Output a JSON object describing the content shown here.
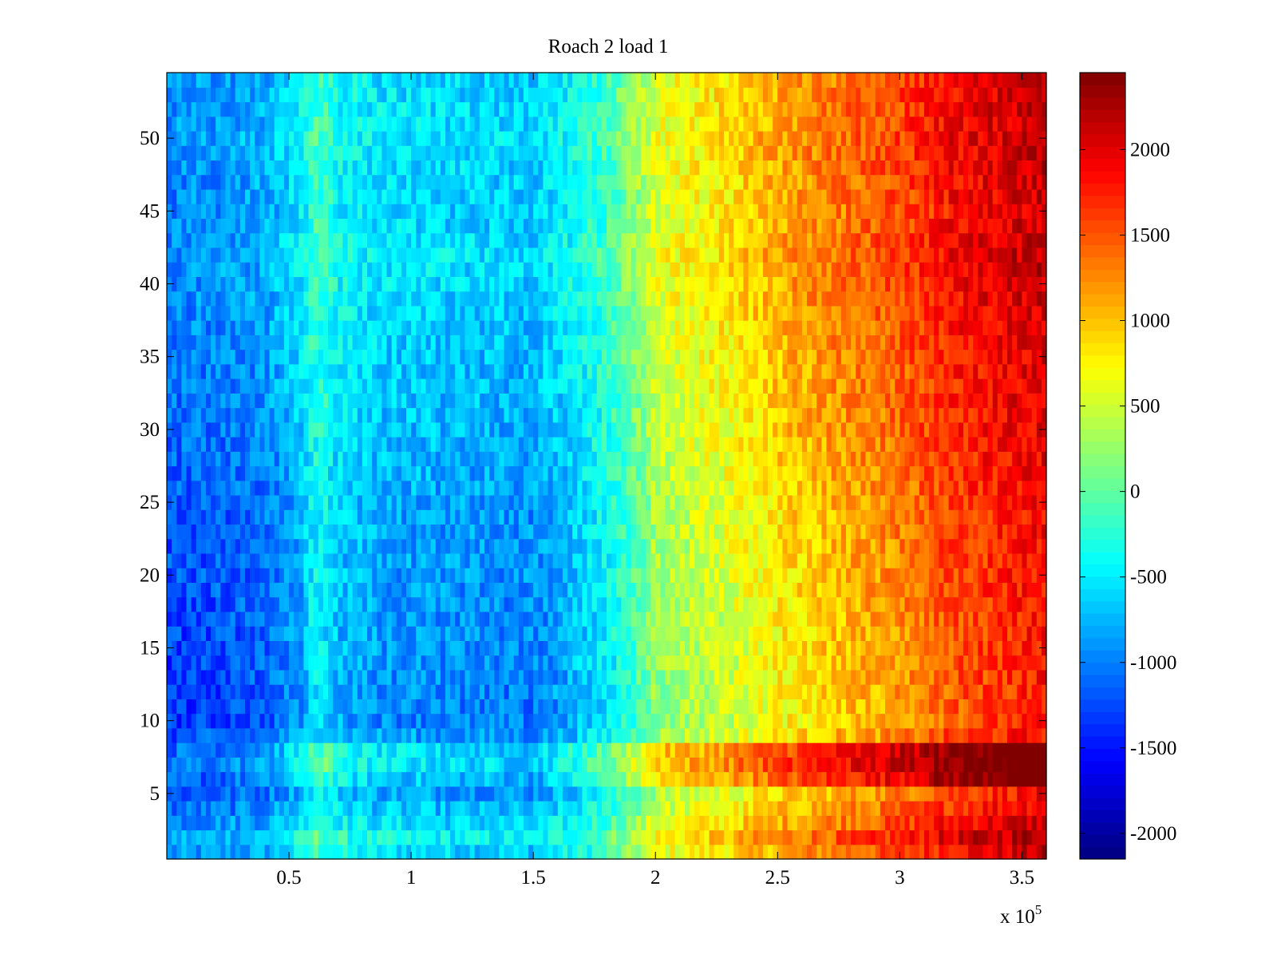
{
  "chart_data": {
    "type": "heatmap",
    "title": "Roach 2 load 1",
    "xlabel": "",
    "ylabel": "",
    "x_exponent_label": "x 10",
    "x_exponent_power": "5",
    "xlim": [
      0,
      360000
    ],
    "ylim": [
      0.5,
      54.5
    ],
    "x_ticks": [
      {
        "value": 50000,
        "label": "0.5"
      },
      {
        "value": 100000,
        "label": "1"
      },
      {
        "value": 150000,
        "label": "1.5"
      },
      {
        "value": 200000,
        "label": "2"
      },
      {
        "value": 250000,
        "label": "2.5"
      },
      {
        "value": 300000,
        "label": "3"
      },
      {
        "value": 350000,
        "label": "3.5"
      }
    ],
    "y_ticks": [
      {
        "value": 5,
        "label": "5"
      },
      {
        "value": 10,
        "label": "10"
      },
      {
        "value": 15,
        "label": "15"
      },
      {
        "value": 20,
        "label": "20"
      },
      {
        "value": 25,
        "label": "25"
      },
      {
        "value": 30,
        "label": "30"
      },
      {
        "value": 35,
        "label": "35"
      },
      {
        "value": 40,
        "label": "40"
      },
      {
        "value": 45,
        "label": "45"
      },
      {
        "value": 50,
        "label": "50"
      }
    ],
    "rows": 54,
    "colormap": "jet",
    "colorbar": {
      "range": [
        -2150,
        2450
      ],
      "ticks": [
        {
          "value": -2000,
          "label": "-2000"
        },
        {
          "value": -1500,
          "label": "-1500"
        },
        {
          "value": -1000,
          "label": "-1000"
        },
        {
          "value": -500,
          "label": "-500"
        },
        {
          "value": 0,
          "label": "0"
        },
        {
          "value": 500,
          "label": "500"
        },
        {
          "value": 1000,
          "label": "1000"
        },
        {
          "value": 1500,
          "label": "1500"
        },
        {
          "value": 2000,
          "label": "2000"
        }
      ]
    },
    "column_profile": {
      "x": [
        0,
        20000,
        40000,
        55000,
        60000,
        65000,
        70000,
        90000,
        120000,
        150000,
        160000,
        180000,
        195000,
        200000,
        230000,
        250000,
        270000,
        300000,
        320000,
        340000,
        360000
      ],
      "value": [
        -1100,
        -1050,
        -950,
        -650,
        -300,
        -350,
        -550,
        -700,
        -750,
        -800,
        -650,
        -300,
        200,
        450,
        700,
        950,
        1150,
        1400,
        1700,
        1850,
        2000
      ]
    },
    "row_offsets": [
      {
        "y": 1,
        "value": 150
      },
      {
        "y": 2,
        "value": 300
      },
      {
        "y": 3,
        "value": 150
      },
      {
        "y": 4,
        "value": 0
      },
      {
        "y": 5,
        "value": -100
      },
      {
        "y": 6,
        "value": 300
      },
      {
        "y": 7,
        "value": 450
      },
      {
        "y": 8,
        "value": 400
      },
      {
        "y": 9,
        "value": -150
      },
      {
        "y": 10,
        "value": -250
      },
      {
        "y": 15,
        "value": -200
      },
      {
        "y": 20,
        "value": -150
      },
      {
        "y": 25,
        "value": -100
      },
      {
        "y": 30,
        "value": 0
      },
      {
        "y": 35,
        "value": 50
      },
      {
        "y": 40,
        "value": 150
      },
      {
        "y": 42,
        "value": 200
      },
      {
        "y": 45,
        "value": 100
      },
      {
        "y": 50,
        "value": 200
      },
      {
        "y": 54,
        "value": 150
      }
    ]
  }
}
